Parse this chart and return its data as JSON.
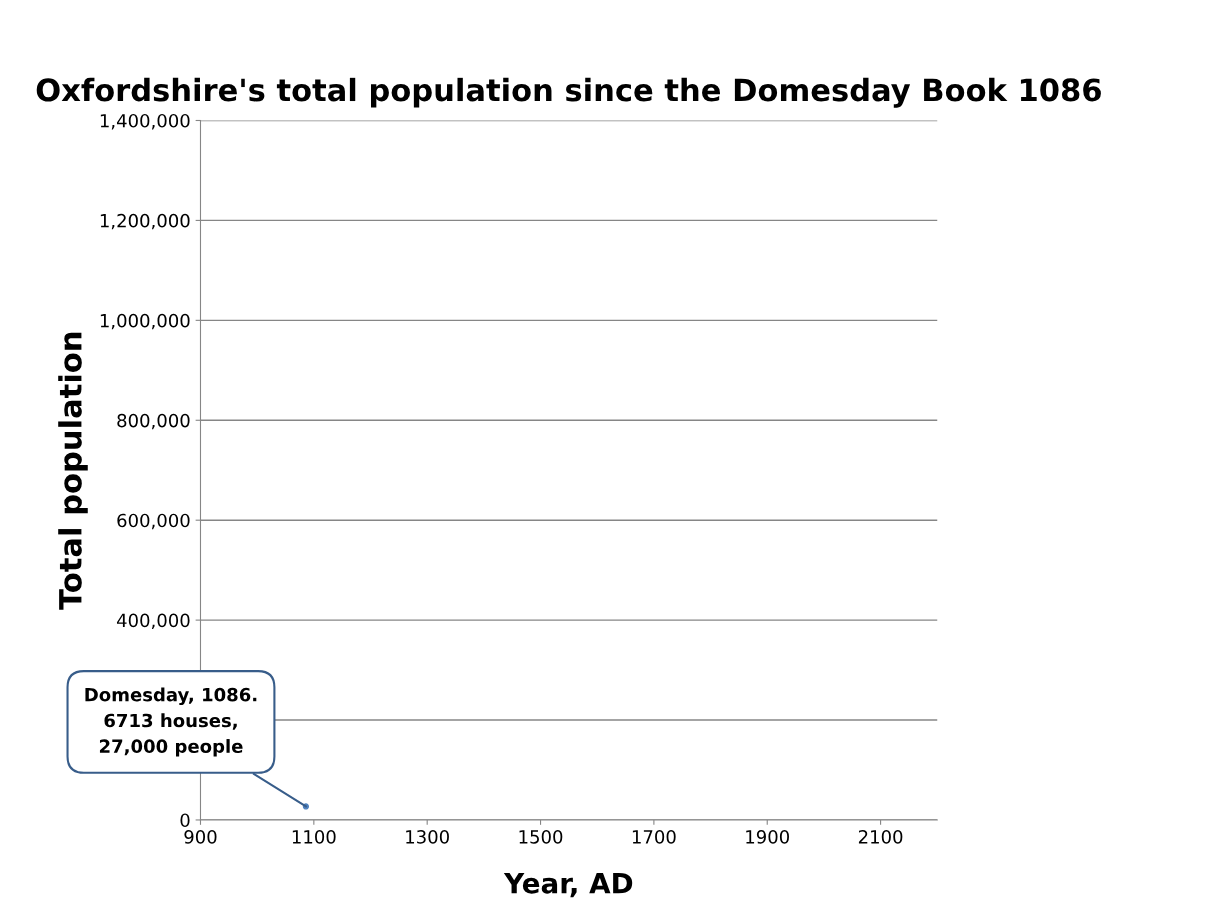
{
  "chart_data": {
    "type": "scatter",
    "title": "Oxfordshire's total population since the Domesday Book 1086",
    "xlabel": "Year, AD",
    "ylabel": "Total population",
    "x": [
      1086
    ],
    "values": [
      27000
    ],
    "color": "#4f81bd",
    "xlim": [
      900,
      2200
    ],
    "xticks": [
      900,
      1100,
      1300,
      1500,
      1700,
      1900,
      2100
    ],
    "ylim": [
      0,
      1400000
    ],
    "yticks": [
      {
        "value": 0,
        "label": "0"
      },
      {
        "value": 200000,
        "label": null
      },
      {
        "value": 400000,
        "label": "400,000"
      },
      {
        "value": 600000,
        "label": "600,000"
      },
      {
        "value": 800000,
        "label": "800,000"
      },
      {
        "value": 1000000,
        "label": "1,000,000"
      },
      {
        "value": 1200000,
        "label": "1,200,000"
      },
      {
        "value": 1400000,
        "label": "1,400,000"
      }
    ],
    "grid": "y",
    "annotations": [
      {
        "text": "Domesday, 1086.\n6713 houses,\n27,000 people",
        "x": 1086,
        "y": 27000
      }
    ]
  }
}
